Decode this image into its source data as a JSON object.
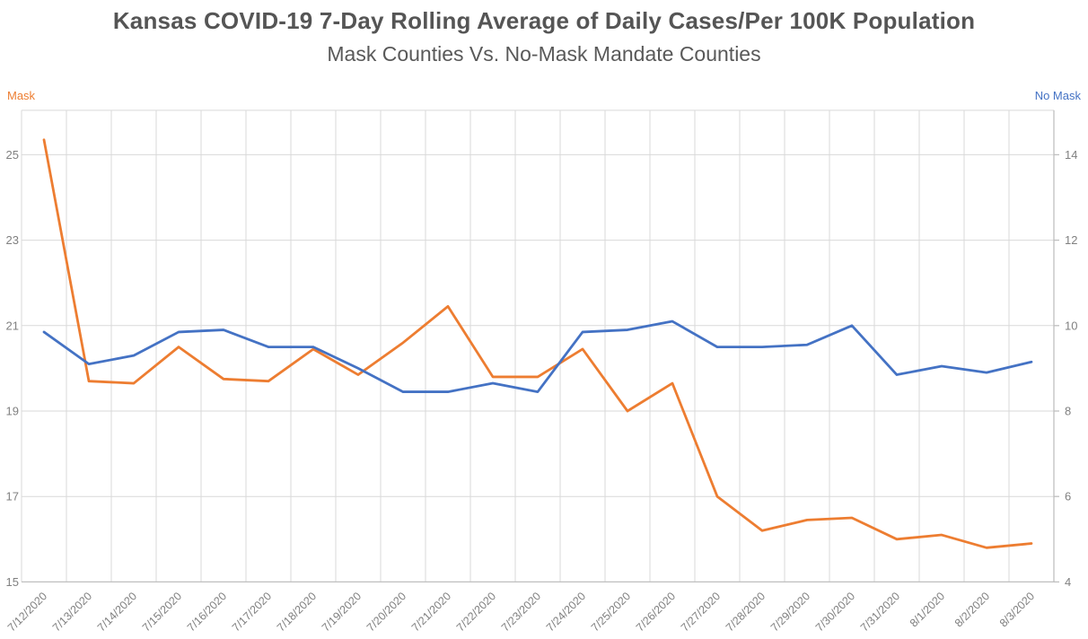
{
  "title": "Kansas COVID-19 7-Day Rolling Average of Daily Cases/Per 100K Population",
  "subtitle": "Mask Counties Vs. No-Mask Mandate Counties",
  "left_axis": {
    "label": "Mask",
    "color": "#ED7D31",
    "ticks": [
      15,
      17,
      19,
      21,
      23,
      25
    ],
    "min": 15,
    "max": 26.04
  },
  "right_axis": {
    "label": "No Mask",
    "color": "#4472C4",
    "ticks": [
      4,
      6,
      8,
      10,
      12,
      14
    ],
    "min": 4,
    "max": 15.04
  },
  "chart_data": {
    "type": "line",
    "title": "Kansas COVID-19 7-Day Rolling Average of Daily Cases/Per 100K Population",
    "subtitle": "Mask Counties Vs. No-Mask Mandate Counties",
    "categories": [
      "7/12/2020",
      "7/13/2020",
      "7/14/2020",
      "7/15/2020",
      "7/16/2020",
      "7/17/2020",
      "7/18/2020",
      "7/19/2020",
      "7/20/2020",
      "7/21/2020",
      "7/22/2020",
      "7/23/2020",
      "7/24/2020",
      "7/25/2020",
      "7/26/2020",
      "7/27/2020",
      "7/28/2020",
      "7/29/2020",
      "7/30/2020",
      "7/31/2020",
      "8/1/2020",
      "8/2/2020",
      "8/3/2020"
    ],
    "series": [
      {
        "name": "Mask",
        "axis": "left",
        "color": "#ED7D31",
        "values": [
          25.35,
          19.7,
          19.65,
          20.5,
          19.75,
          19.7,
          20.45,
          19.85,
          20.6,
          21.45,
          19.8,
          19.8,
          20.45,
          19.0,
          19.65,
          17.0,
          16.2,
          16.45,
          16.5,
          16.0,
          16.1,
          15.8,
          15.9
        ]
      },
      {
        "name": "No Mask",
        "axis": "right",
        "color": "#4472C4",
        "values": [
          9.85,
          9.1,
          9.3,
          9.85,
          9.9,
          9.5,
          9.5,
          9.0,
          8.45,
          8.45,
          8.65,
          8.45,
          9.85,
          9.9,
          10.1,
          9.5,
          9.5,
          9.55,
          10.0,
          8.85,
          9.05,
          8.9,
          9.15
        ]
      }
    ],
    "left_ylim": [
      15,
      26.04
    ],
    "right_ylim": [
      4,
      15.04
    ],
    "grid": true,
    "legend_position": "none",
    "colors": {
      "gridline": "#D9D9D9",
      "axis_line": "#BFBFBF",
      "tick_label": "#808080",
      "title": "#555555",
      "subtitle": "#595959"
    }
  }
}
